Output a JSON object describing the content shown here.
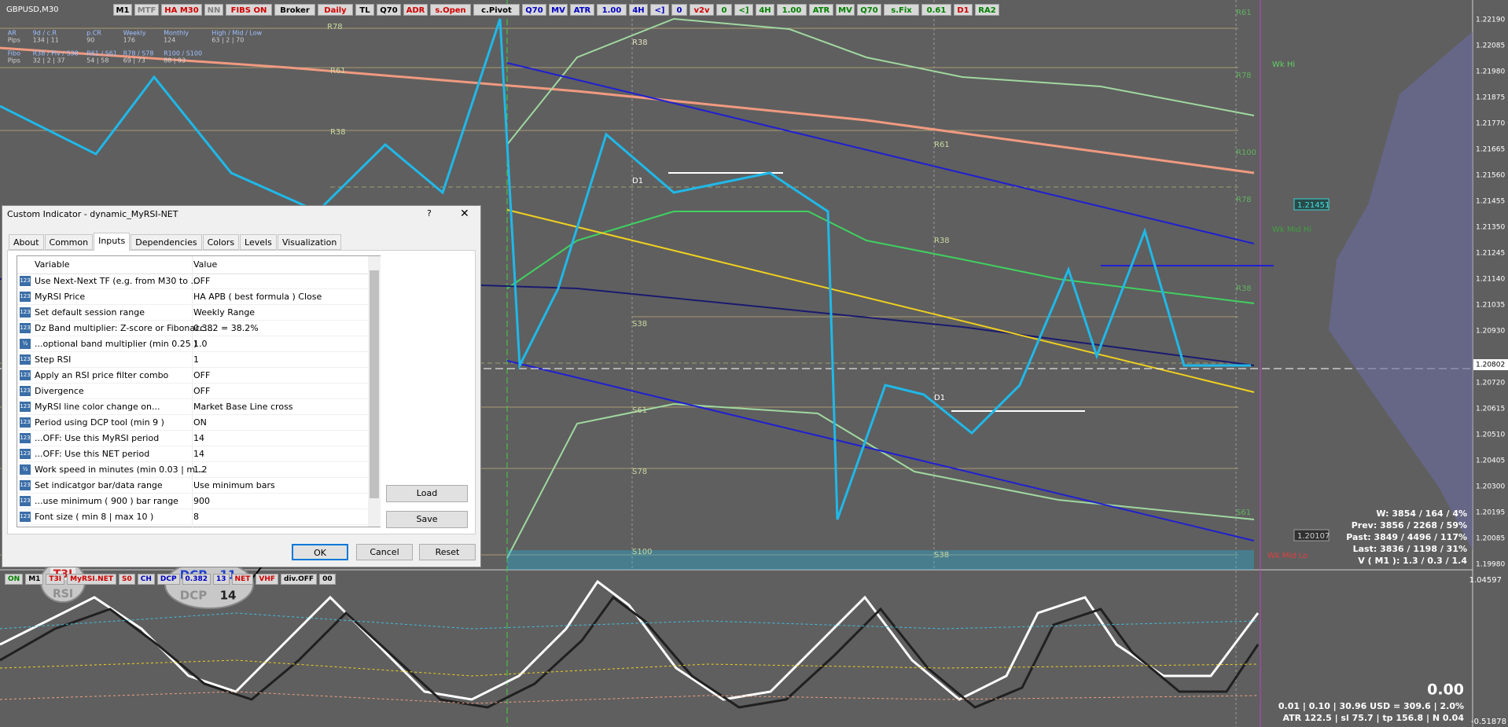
{
  "symbol": "GBPUSD,M30",
  "toolbar": [
    {
      "text": "M1",
      "color": "#000000"
    },
    {
      "text": "MTF",
      "color": "#808080"
    },
    {
      "text": "HA M30",
      "color": "#d00000"
    },
    {
      "text": "NN",
      "color": "#808080"
    },
    {
      "text": "FIBS ON",
      "color": "#d00000"
    },
    {
      "text": "Broker",
      "color": "#000000"
    },
    {
      "text": "Daily",
      "color": "#d00000"
    },
    {
      "text": "TL",
      "color": "#000000"
    },
    {
      "text": "Q70",
      "color": "#000000"
    },
    {
      "text": "ADR",
      "color": "#d00000"
    },
    {
      "text": "s.Open",
      "color": "#d00000"
    },
    {
      "text": "c.Pivot",
      "color": "#000000"
    },
    {
      "text": "Q70",
      "color": "#0000c0"
    },
    {
      "text": "MV",
      "color": "#0000c0"
    },
    {
      "text": "ATR",
      "color": "#0000c0"
    },
    {
      "text": "1.00",
      "color": "#0000c0"
    },
    {
      "text": "4H",
      "color": "#0000c0"
    },
    {
      "text": "<]",
      "color": "#0000c0"
    },
    {
      "text": "0",
      "color": "#0000c0"
    },
    {
      "text": "v2v",
      "color": "#d00000"
    },
    {
      "text": "0",
      "color": "#008000"
    },
    {
      "text": "<]",
      "color": "#008000"
    },
    {
      "text": "4H",
      "color": "#008000"
    },
    {
      "text": "1.00",
      "color": "#008000"
    },
    {
      "text": "ATR",
      "color": "#008000"
    },
    {
      "text": "MV",
      "color": "#008000"
    },
    {
      "text": "Q70",
      "color": "#008000"
    },
    {
      "text": "s.Fix",
      "color": "#008000"
    },
    {
      "text": "0.61",
      "color": "#008000"
    },
    {
      "text": "D1",
      "color": "#d00000"
    },
    {
      "text": "RA2",
      "color": "#008000"
    }
  ],
  "info_panel": [
    [
      "AR",
      "9d / c.R",
      "p.CR",
      "Weekly",
      "Monthly",
      "High / Mid / Low"
    ],
    [
      "Pips",
      "134 | 11",
      "90",
      "176",
      "124",
      "63 | 2 | 70"
    ],
    [
      "Fibo",
      "R38 / Piv / S38",
      "R61 / S61",
      "R78 / S78",
      "R100 / S100",
      ""
    ],
    [
      "Pips",
      "32 | 2 | 37",
      "54 | 58",
      "69 | 73",
      "88 | 93",
      ""
    ]
  ],
  "chart_labels": {
    "r78": "R78",
    "r61": "R61",
    "r38": "R38",
    "s38": "S38",
    "s61": "S61",
    "s78": "S78",
    "s100": "S100",
    "d1": "D1",
    "r100": "R100",
    "wk_hi": "Wk Hi",
    "wk_mid_hi": "Wk Mid Hi",
    "wk_mid_lo": "Wk Mid Lo",
    "tag_hi": "1.21451",
    "tag_lo": "1.20107"
  },
  "price_axis": {
    "labels": [
      "1.22190",
      "1.22085",
      "1.21980",
      "1.21875",
      "1.21770",
      "1.21665",
      "1.21560",
      "1.21455",
      "1.21350",
      "1.21245",
      "1.21140",
      "1.21035",
      "1.20930",
      "1.20720",
      "1.20615",
      "1.20510",
      "1.20405",
      "1.20300",
      "1.20195",
      "1.20085",
      "1.19980"
    ],
    "current": "1.20802",
    "ind_top": "1.04597",
    "ind_bottom": "-0.51878"
  },
  "stats": [
    "W: 3854 / 164 / 4%",
    "Prev: 3856 / 2268 / 59%",
    "Past: 3849 / 4496 / 117%",
    "Last: 3836 / 1198 / 31%",
    "V ( M1 ): 1.3 / 0.3 / 1.4"
  ],
  "indicator": {
    "value": "0.00",
    "line1": "0.01 | 0.10 | 30.96 USD = 309.6 | 2.0%",
    "line2": "ATR 122.5 | sl 75.7 | tp 156.8 | N 0.04",
    "buttons": [
      {
        "text": "ON",
        "color": "#008000"
      },
      {
        "text": "M1",
        "color": "#000000"
      },
      {
        "text": "T3I",
        "color": "#d00000"
      },
      {
        "text": "MyRSI.NET",
        "color": "#d00000"
      },
      {
        "text": "S0",
        "color": "#d00000"
      },
      {
        "text": "CH",
        "color": "#0000c0"
      },
      {
        "text": "DCP",
        "color": "#0000c0"
      },
      {
        "text": "0.382",
        "color": "#0000c0"
      },
      {
        "text": "13",
        "color": "#0000c0"
      },
      {
        "text": "NET",
        "color": "#d00000"
      },
      {
        "text": "VHF",
        "color": "#d00000"
      },
      {
        "text": "div.OFF",
        "color": "#000000"
      },
      {
        "text": "00",
        "color": "#000000"
      }
    ],
    "badge1": {
      "top": "T3I",
      "bottom": "RSI"
    },
    "badge2": {
      "top_label": "DCP",
      "top_value": "11",
      "bottom_label": "DCP",
      "bottom_value": "14"
    }
  },
  "dialog": {
    "title": "Custom Indicator - dynamic_MyRSI-NET",
    "help": "?",
    "close": "✕",
    "tabs": [
      "About",
      "Common",
      "Inputs",
      "Dependencies",
      "Colors",
      "Levels",
      "Visualization"
    ],
    "active_tab": 2,
    "columns": [
      "Variable",
      "Value"
    ],
    "rows": [
      {
        "icon": "123",
        "name": "Use Next-Next TF (e.g. from M30 to  ...",
        "value": "OFF"
      },
      {
        "icon": "123",
        "name": "MyRSI Price",
        "value": "HA APB ( best formula ) Close"
      },
      {
        "icon": "123",
        "name": "Set default session range",
        "value": "Weekly Range"
      },
      {
        "icon": "123",
        "name": "Dz Band multiplier: Z-score or Fibonacc...",
        "value": "0.382 = 38.2%"
      },
      {
        "icon": "½",
        "name": "...optional band multiplier (min 0.25 )",
        "value": "1.0"
      },
      {
        "icon": "123",
        "name": "Step RSI",
        "value": "1"
      },
      {
        "icon": "123",
        "name": "Apply an RSI price filter combo",
        "value": "OFF"
      },
      {
        "icon": "123",
        "name": "Divergence",
        "value": "OFF"
      },
      {
        "icon": "123",
        "name": "MyRSI line color change on...",
        "value": "Market Base Line cross"
      },
      {
        "icon": "123",
        "name": "Period using DCP tool (min 9 )",
        "value": "ON"
      },
      {
        "icon": "123",
        "name": "...OFF: Use this MyRSI period",
        "value": "14"
      },
      {
        "icon": "123",
        "name": "...OFF: Use this NET period",
        "value": "14"
      },
      {
        "icon": "½",
        "name": "Work speed in minutes (min 0.03 | m...",
        "value": "1.2"
      },
      {
        "icon": "123",
        "name": "Set indicatgor bar/data range",
        "value": "Use minimum bars"
      },
      {
        "icon": "123",
        "name": "...use minimum ( 900 ) bar range",
        "value": "900"
      },
      {
        "icon": "123",
        "name": "Font size ( min 8 | max 10 )",
        "value": "8"
      }
    ],
    "buttons": {
      "load": "Load",
      "save": "Save",
      "ok": "OK",
      "cancel": "Cancel",
      "reset": "Reset"
    }
  }
}
